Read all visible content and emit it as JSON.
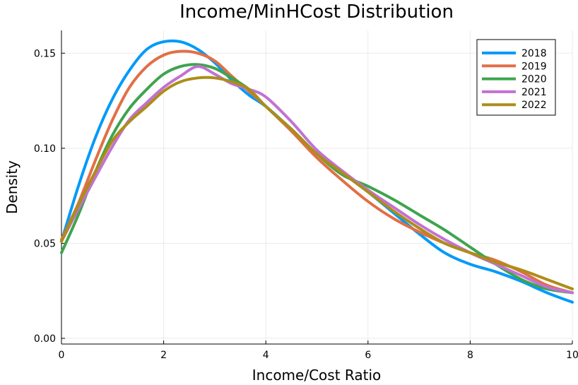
{
  "chart_data": {
    "type": "line",
    "title": "Income/MinHCost Distribution",
    "xlabel": "Income/Cost Ratio",
    "ylabel": "Density",
    "xlim": [
      0,
      10
    ],
    "ylim": [
      -0.003,
      0.162
    ],
    "xticks": [
      0,
      2,
      4,
      6,
      8,
      10
    ],
    "xtick_labels": [
      "0",
      "2",
      "4",
      "6",
      "8",
      "10"
    ],
    "yticks": [
      0.0,
      0.05,
      0.1,
      0.15
    ],
    "ytick_labels": [
      "0.00",
      "0.05",
      "0.10",
      "0.15"
    ],
    "grid": true,
    "legend_position": "top-right",
    "series": [
      {
        "name": "2018",
        "color": "#009af9",
        "x": [
          0,
          0.33,
          0.67,
          1.0,
          1.33,
          1.67,
          2.0,
          2.33,
          2.67,
          3.0,
          3.33,
          3.67,
          4.0,
          4.5,
          5.0,
          5.5,
          6.0,
          6.5,
          7.0,
          7.5,
          8.0,
          8.5,
          9.0,
          9.5,
          10.0
        ],
        "y": [
          0.051,
          0.08,
          0.106,
          0.126,
          0.141,
          0.152,
          0.156,
          0.156,
          0.152,
          0.145,
          0.136,
          0.128,
          0.122,
          0.11,
          0.097,
          0.087,
          0.077,
          0.066,
          0.055,
          0.045,
          0.039,
          0.035,
          0.03,
          0.024,
          0.019
        ]
      },
      {
        "name": "2019",
        "color": "#e26f46",
        "x": [
          0,
          0.33,
          0.67,
          1.0,
          1.33,
          1.67,
          2.0,
          2.33,
          2.67,
          3.0,
          3.33,
          3.67,
          4.0,
          4.5,
          5.0,
          5.5,
          6.0,
          6.5,
          7.0,
          7.5,
          8.0,
          8.5,
          9.0,
          9.5,
          10.0
        ],
        "y": [
          0.052,
          0.071,
          0.094,
          0.115,
          0.132,
          0.143,
          0.149,
          0.151,
          0.15,
          0.146,
          0.138,
          0.13,
          0.122,
          0.109,
          0.095,
          0.083,
          0.072,
          0.063,
          0.056,
          0.05,
          0.045,
          0.041,
          0.035,
          0.028,
          0.024
        ]
      },
      {
        "name": "2020",
        "color": "#3ea44e",
        "x": [
          0,
          0.33,
          0.67,
          1.0,
          1.33,
          1.67,
          2.0,
          2.33,
          2.67,
          3.0,
          3.33,
          3.67,
          4.0,
          4.5,
          5.0,
          5.5,
          6.0,
          6.5,
          7.0,
          7.5,
          8.0,
          8.5,
          9.0,
          9.5,
          10.0
        ],
        "y": [
          0.045,
          0.065,
          0.088,
          0.107,
          0.121,
          0.131,
          0.139,
          0.143,
          0.144,
          0.142,
          0.137,
          0.131,
          0.122,
          0.11,
          0.097,
          0.086,
          0.08,
          0.073,
          0.065,
          0.057,
          0.048,
          0.039,
          0.031,
          0.026,
          0.024
        ]
      },
      {
        "name": "2021",
        "color": "#c271d2",
        "x": [
          0,
          0.33,
          0.67,
          1.0,
          1.33,
          1.67,
          2.0,
          2.33,
          2.67,
          3.0,
          3.33,
          3.67,
          4.0,
          4.5,
          5.0,
          5.5,
          6.0,
          6.5,
          7.0,
          7.5,
          8.0,
          8.5,
          9.0,
          9.5,
          10.0
        ],
        "y": [
          0.051,
          0.068,
          0.085,
          0.101,
          0.115,
          0.124,
          0.132,
          0.138,
          0.143,
          0.139,
          0.134,
          0.131,
          0.127,
          0.114,
          0.099,
          0.088,
          0.078,
          0.069,
          0.06,
          0.052,
          0.045,
          0.039,
          0.033,
          0.027,
          0.024
        ]
      },
      {
        "name": "2022",
        "color": "#ac8d18",
        "x": [
          0,
          0.33,
          0.67,
          1.0,
          1.33,
          1.67,
          2.0,
          2.33,
          2.67,
          3.0,
          3.33,
          3.67,
          4.0,
          4.5,
          5.0,
          5.5,
          6.0,
          6.5,
          7.0,
          7.5,
          8.0,
          8.5,
          9.0,
          9.5,
          10.0
        ],
        "y": [
          0.051,
          0.07,
          0.088,
          0.104,
          0.114,
          0.122,
          0.13,
          0.135,
          0.137,
          0.137,
          0.135,
          0.131,
          0.122,
          0.11,
          0.097,
          0.087,
          0.077,
          0.067,
          0.058,
          0.05,
          0.045,
          0.04,
          0.036,
          0.031,
          0.026
        ]
      }
    ]
  }
}
